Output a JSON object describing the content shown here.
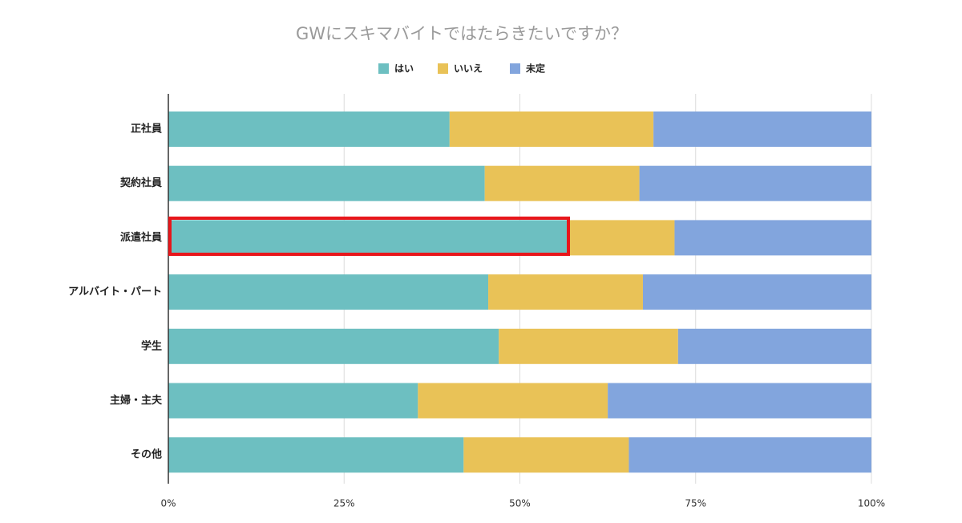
{
  "chart_data": {
    "type": "stacked-bar-horizontal",
    "title": "GWにスキマバイトではたらきたいですか？",
    "categories": [
      "正社員",
      "契約社員",
      "派遣社員",
      "アルバイト・パート",
      "学生",
      "主婦・主夫",
      "その他"
    ],
    "series": [
      {
        "name": "はい",
        "color": "#6dbfc1",
        "values": [
          40,
          45,
          57,
          45.5,
          47,
          35.5,
          42
        ]
      },
      {
        "name": "いいえ",
        "color": "#e9c257",
        "values": [
          29,
          22,
          15,
          22,
          25.5,
          27,
          23.5
        ]
      },
      {
        "name": "未定",
        "color": "#82a5dd",
        "values": [
          31,
          33,
          28,
          32.5,
          27.5,
          37.5,
          34.5
        ]
      }
    ],
    "xlim": [
      0,
      100
    ],
    "xticks": [
      {
        "value": 0,
        "label": "0%"
      },
      {
        "value": 25,
        "label": "25%"
      },
      {
        "value": 50,
        "label": "50%"
      },
      {
        "value": 75,
        "label": "75%"
      },
      {
        "value": 100,
        "label": "100%"
      }
    ],
    "grid": true,
    "legend": "top"
  }
}
